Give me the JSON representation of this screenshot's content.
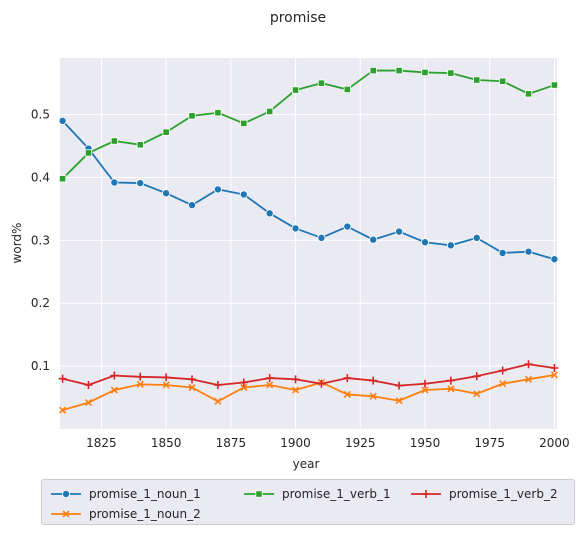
{
  "chart_data": {
    "type": "line",
    "title": "promise",
    "xlabel": "year",
    "ylabel": "word%",
    "xlim": [
      1809,
      2001
    ],
    "ylim": [
      0.0,
      0.59
    ],
    "xticks": [
      1825,
      1850,
      1875,
      1900,
      1925,
      1950,
      1975,
      2000
    ],
    "yticks": [
      0.1,
      0.2,
      0.3,
      0.4,
      0.5
    ],
    "ytick_labels": [
      "0.1",
      "0.2",
      "0.3",
      "0.4",
      "0.5"
    ],
    "grid": true,
    "legend_position": "bottom",
    "x": [
      1810,
      1820,
      1830,
      1840,
      1850,
      1860,
      1870,
      1880,
      1890,
      1900,
      1910,
      1920,
      1930,
      1940,
      1950,
      1960,
      1970,
      1980,
      1990,
      2000
    ],
    "series": [
      {
        "name": "promise_1_noun_1",
        "color": "#1f77b4",
        "marker": "circle",
        "values": [
          0.49,
          0.446,
          0.392,
          0.391,
          0.375,
          0.356,
          0.381,
          0.373,
          0.343,
          0.319,
          0.304,
          0.322,
          0.301,
          0.314,
          0.297,
          0.292,
          0.304,
          0.28,
          0.282,
          0.27
        ]
      },
      {
        "name": "promise_1_noun_2",
        "color": "#ff7f0e",
        "marker": "x",
        "values": [
          0.03,
          0.042,
          0.062,
          0.071,
          0.07,
          0.066,
          0.044,
          0.066,
          0.07,
          0.062,
          0.074,
          0.055,
          0.052,
          0.045,
          0.062,
          0.064,
          0.056,
          0.072,
          0.079,
          0.086
        ]
      },
      {
        "name": "promise_1_verb_1",
        "color": "#2ca02c",
        "marker": "square",
        "values": [
          0.398,
          0.439,
          0.458,
          0.452,
          0.472,
          0.498,
          0.503,
          0.486,
          0.505,
          0.539,
          0.55,
          0.54,
          0.57,
          0.57,
          0.567,
          0.566,
          0.555,
          0.553,
          0.533,
          0.547
        ]
      },
      {
        "name": "promise_1_verb_2",
        "color": "#d62728",
        "marker": "plus",
        "values": [
          0.08,
          0.07,
          0.085,
          0.083,
          0.082,
          0.079,
          0.07,
          0.074,
          0.081,
          0.079,
          0.072,
          0.081,
          0.077,
          0.069,
          0.072,
          0.077,
          0.084,
          0.093,
          0.103,
          0.097
        ]
      }
    ]
  }
}
